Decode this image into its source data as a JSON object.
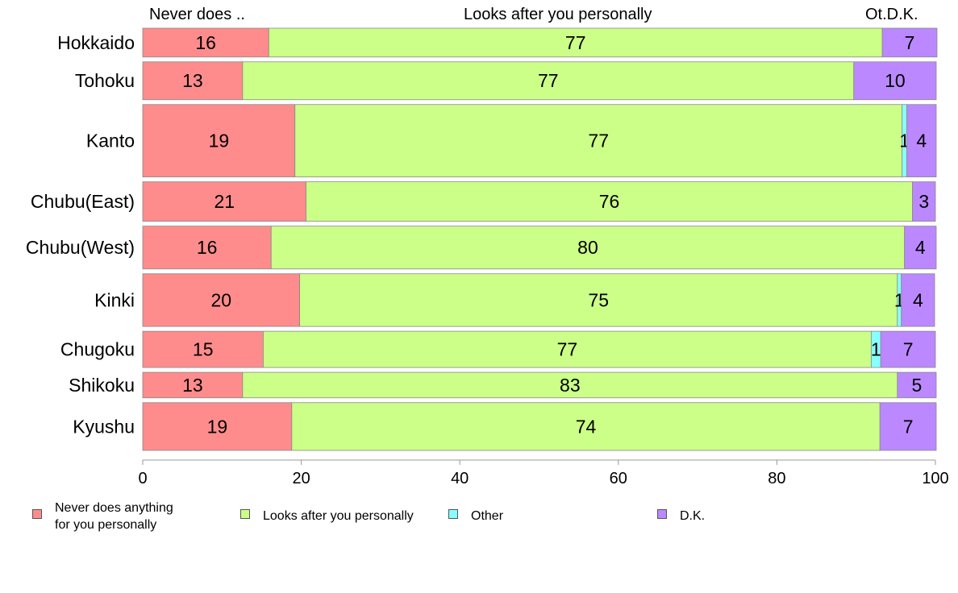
{
  "chart_data": {
    "type": "bar",
    "orientation": "horizontal",
    "stacked": true,
    "header_labels": {
      "first": "Never does ..",
      "second": "Looks after you personally",
      "third": "Ot.D.K."
    },
    "categories": [
      "Hokkaido",
      "Tohoku",
      "Kanto",
      "Chubu(East)",
      "Chubu(West)",
      "Kinki",
      "Chugoku",
      "Shikoku",
      "Kyushu"
    ],
    "series": [
      {
        "name": "Never does anything\nfor you personally",
        "color": "#ff8c8c",
        "values": [
          16,
          13,
          19,
          21,
          16,
          20,
          15,
          13,
          19
        ],
        "exact": [
          15.9,
          12.6,
          19.2,
          20.6,
          16.2,
          19.8,
          15.2,
          12.6,
          18.8
        ]
      },
      {
        "name": "Looks after you personally",
        "color": "#ccff88",
        "values": [
          77,
          77,
          77,
          76,
          80,
          75,
          77,
          83,
          74
        ],
        "exact": [
          77.4,
          77.1,
          76.6,
          76.5,
          79.9,
          75.4,
          76.7,
          82.6,
          74.2
        ]
      },
      {
        "name": "Other",
        "color": "#88ffff",
        "values": [
          0,
          0,
          1,
          0,
          0,
          1,
          1,
          0,
          0
        ],
        "exact": [
          0,
          0,
          0.6,
          0,
          0,
          0.5,
          1.2,
          0,
          0
        ]
      },
      {
        "name": "D.K.",
        "color": "#bb88ff",
        "values": [
          7,
          10,
          4,
          3,
          4,
          4,
          7,
          5,
          7
        ],
        "exact": [
          6.9,
          10.4,
          3.7,
          2.9,
          4.0,
          4.2,
          6.9,
          4.9,
          7.1
        ]
      }
    ],
    "group_weights": [
      35,
      46,
      88,
      48,
      52,
      64,
      44,
      31,
      58
    ],
    "xlim": [
      0,
      100
    ],
    "xticks": [
      0,
      20,
      40,
      60,
      80,
      100
    ],
    "legend_position": "bottom"
  }
}
